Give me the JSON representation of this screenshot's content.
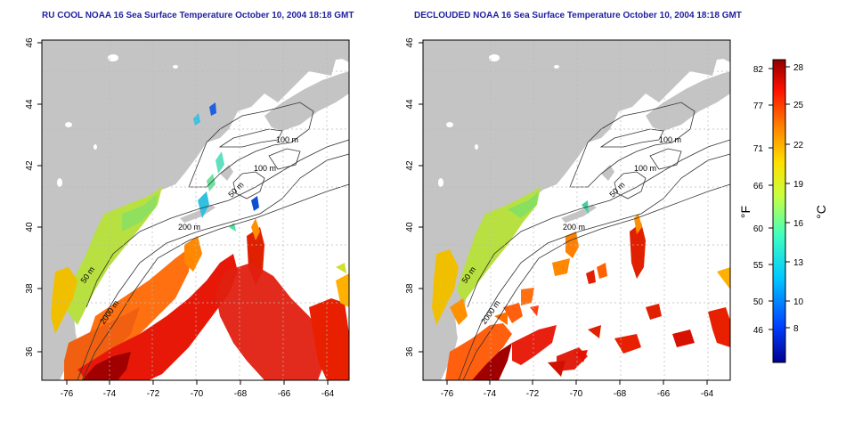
{
  "maps": [
    {
      "title": "RU COOL NOAA 16 Sea Surface Temperature October 10, 2004 18:18 GMT",
      "contour_labels": [
        "100 m",
        "100 m",
        "50 m",
        "200 m",
        "50 m",
        "2000 m"
      ]
    },
    {
      "title": "DECLOUDED NOAA 16 Sea Surface Temperature October 10, 2004 18:18 GMT",
      "contour_labels": [
        "100 m",
        "100 m",
        "50 m",
        "200 m",
        "50 m",
        "2000 m"
      ]
    }
  ],
  "axes": {
    "x_ticks": [
      "-76",
      "-74",
      "-72",
      "-70",
      "-68",
      "-66",
      "-64"
    ],
    "y_ticks": [
      "36",
      "38",
      "40",
      "42",
      "44",
      "46"
    ]
  },
  "colorbar": {
    "f_label": "°F",
    "c_label": "°C",
    "f_ticks": [
      "82",
      "77",
      "71",
      "66",
      "60",
      "55",
      "50",
      "46"
    ],
    "c_ticks": [
      "28",
      "25",
      "22",
      "19",
      "16",
      "13",
      "10",
      "8"
    ]
  },
  "colors": {
    "land": "#c4c4c4",
    "title": "#1f1fa0",
    "grid": "#b8b8b8"
  }
}
